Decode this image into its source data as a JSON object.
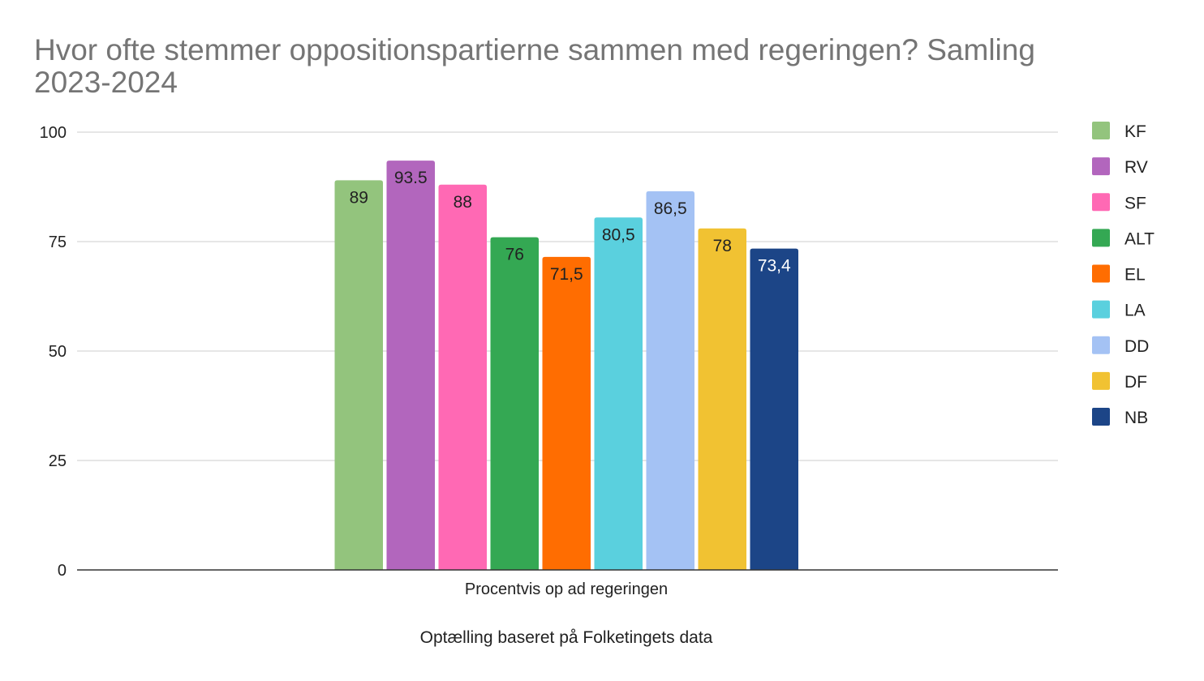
{
  "chart_data": {
    "type": "bar",
    "title": "Hvor ofte stemmer oppositionspartierne sammen med regeringen? Samling 2023-2024",
    "title_lines": [
      "Hvor ofte stemmer oppositionspartierne sammen med regeringen? Samling",
      "2023-2024"
    ],
    "categories": [
      "Procentvis op ad regeringen"
    ],
    "xlabel": "Optælling baseret på Folketingets data",
    "ylabel": "",
    "ylim": [
      0,
      100
    ],
    "yticks": [
      0,
      25,
      50,
      75,
      100
    ],
    "grid": true,
    "legend_position": "right",
    "series": [
      {
        "name": "KF",
        "values": [
          89
        ],
        "label": "89",
        "color": "#93c47d",
        "label_color": "#222222"
      },
      {
        "name": "RV",
        "values": [
          93.5
        ],
        "label": "93.5",
        "color": "#b266bd",
        "label_color": "#222222"
      },
      {
        "name": "SF",
        "values": [
          88
        ],
        "label": "88",
        "color": "#ff69b4",
        "label_color": "#222222"
      },
      {
        "name": "ALT",
        "values": [
          76
        ],
        "label": "76",
        "color": "#34a853",
        "label_color": "#222222"
      },
      {
        "name": "EL",
        "values": [
          71.5
        ],
        "label": "71,5",
        "color": "#ff6d01",
        "label_color": "#222222"
      },
      {
        "name": "LA",
        "values": [
          80.5
        ],
        "label": "80,5",
        "color": "#5ad0de",
        "label_color": "#222222"
      },
      {
        "name": "DD",
        "values": [
          86.5
        ],
        "label": "86,5",
        "color": "#a4c2f4",
        "label_color": "#222222"
      },
      {
        "name": "DF",
        "values": [
          78
        ],
        "label": "78",
        "color": "#f1c232",
        "label_color": "#222222"
      },
      {
        "name": "NB",
        "values": [
          73.4
        ],
        "label": "73,4",
        "color": "#1c4587",
        "label_color": "#ffffff"
      }
    ]
  }
}
